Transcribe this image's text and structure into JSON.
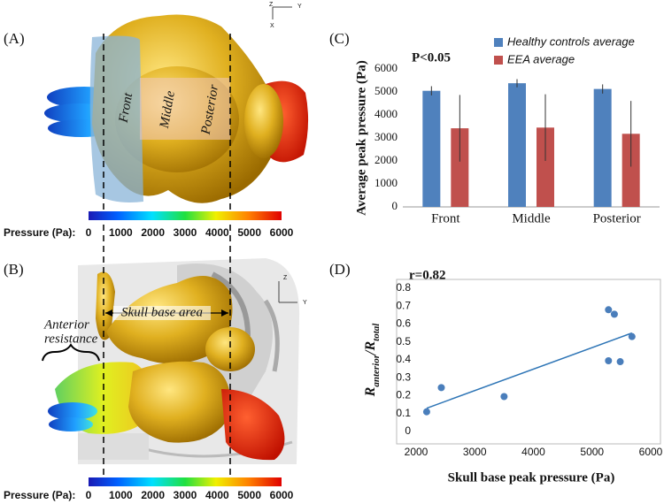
{
  "figure": {
    "panel_labels": [
      "(A)",
      "(B)",
      "(C)",
      "(D)"
    ],
    "panel_a": {
      "regions": [
        "Front",
        "Middle",
        "Posterior"
      ],
      "axis_letters": [
        "Z",
        "Y",
        "X"
      ]
    },
    "panel_b": {
      "span_label": "Skull base area",
      "side_label": [
        "Anterior",
        "resistance"
      ],
      "axis_letters": [
        "Z",
        "Y"
      ]
    },
    "colorbar": {
      "title": "Pressure (Pa):",
      "lim": [
        0,
        6000
      ],
      "ticks": [
        0,
        1000,
        2000,
        3000,
        4000,
        5000,
        6000
      ]
    }
  },
  "chart_data": [
    {
      "type": "bar",
      "ylabel": "Average peak pressure (Pa)",
      "annotation": "P<0.05",
      "categories": [
        "Front",
        "Middle",
        "Posterior"
      ],
      "series": [
        {
          "name": "Healthy controls average",
          "color": "#4f81bd",
          "values": [
            5050,
            5380,
            5130
          ],
          "errors": [
            200,
            180,
            200
          ]
        },
        {
          "name": "EEA average",
          "color": "#c0504d",
          "values": [
            3420,
            3450,
            3180
          ],
          "errors": [
            1450,
            1450,
            1430
          ]
        }
      ],
      "ylim": [
        0,
        6000
      ],
      "yticks": [
        0,
        1000,
        2000,
        3000,
        4000,
        5000,
        6000
      ],
      "legend": "top-right"
    },
    {
      "type": "scatter",
      "annotation": "r=0.82",
      "xlabel": "Skull base peak pressure (Pa)",
      "ylabel": [
        "R",
        "anterior",
        "/R",
        "total"
      ],
      "x": [
        2180,
        2430,
        3500,
        5280,
        5380,
        5280,
        5480,
        5680
      ],
      "y": [
        0.11,
        0.245,
        0.195,
        0.68,
        0.655,
        0.395,
        0.39,
        0.53
      ],
      "color": "#4a7ebb",
      "trendline": {
        "x": [
          2180,
          5680
        ],
        "y": [
          0.13,
          0.55
        ],
        "color": "#2e75b6"
      },
      "xlim": [
        2000,
        6000
      ],
      "xticks": [
        2000,
        3000,
        4000,
        5000,
        6000
      ],
      "ylim": [
        0,
        0.8
      ],
      "yticks": [
        0,
        0.1,
        0.2,
        0.3,
        0.4,
        0.5,
        0.6,
        0.7,
        0.8
      ]
    }
  ]
}
